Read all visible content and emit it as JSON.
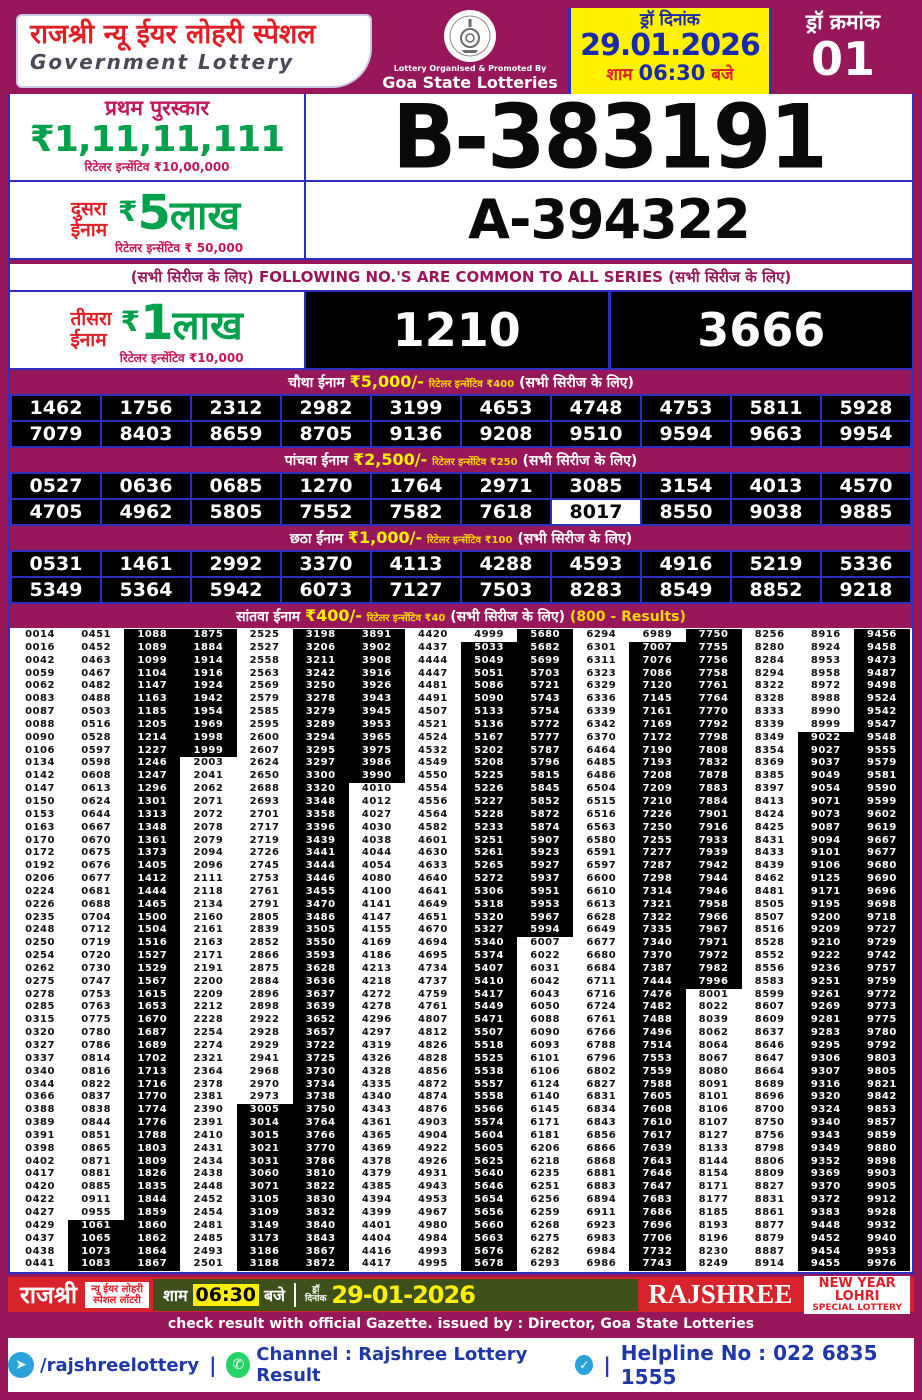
{
  "colors": {
    "magenta": "#97175A",
    "red": "#E21E26",
    "green": "#00A14B",
    "yellow": "#FFF100",
    "blue_text": "#1B2AA8",
    "blue_border": "#2E2EC0",
    "footer_red": "#D8232A",
    "footer_green": "#3E511C",
    "link_blue": "#2037A8",
    "black": "#000000"
  },
  "header": {
    "title": "राजश्री न्यू ईयर लोहरी स्पेशल",
    "subtitle": "Government Lottery",
    "org_line1": "Lottery Organised & Promoted By",
    "org_line2": "Goa State Lotteries",
    "draw_date_label": "ड्रॉ दिनांक",
    "draw_date": "29.01.2026",
    "time_prefix": "शाम",
    "time": "06:30",
    "time_suffix": "बजे",
    "draw_no_label": "ड्रॉ क्रमांक",
    "draw_no": "01"
  },
  "first_prize": {
    "label": "प्रथम पुरस्कार",
    "amount": "₹1,11,11,111",
    "incentive": "रिटेलर इन्सेंटिव ₹10,00,000",
    "number": "B-383191"
  },
  "second_prize": {
    "label_line1": "दुसरा",
    "label_line2": "ईनाम",
    "currency": "₹",
    "value": "5",
    "unit": "लाख",
    "incentive": "रिटेलर इन्सेंटिव ₹ 50,000",
    "number": "A-394322"
  },
  "common_note": {
    "left": "(सभी सिरीज के लिए)",
    "center": "FOLLOWING NO.'S ARE COMMON TO ALL SERIES",
    "right": "(सभी सिरीज के लिए)"
  },
  "third_prize": {
    "label_line1": "तीसरा",
    "label_line2": "ईनाम",
    "currency": "₹",
    "value": "1",
    "unit": "लाख",
    "incentive": "रिटेलर इन्सेंटिव ₹10,000",
    "numbers": [
      "1210",
      "3666"
    ]
  },
  "fourth_prize": {
    "title": "चौथा ईनाम",
    "amount": "₹5,000/-",
    "incentive": "रिटेलर इन्सेंटिव ₹400",
    "note": "(सभी सिरीज के लिए)",
    "numbers": [
      "1462",
      "1756",
      "2312",
      "2982",
      "3199",
      "4653",
      "4748",
      "4753",
      "5811",
      "5928",
      "7079",
      "8403",
      "8659",
      "8705",
      "9136",
      "9208",
      "9510",
      "9594",
      "9663",
      "9954"
    ]
  },
  "fifth_prize": {
    "title": "पांचवा ईनाम",
    "amount": "₹2,500/-",
    "incentive": "रिटेलर इन्सेंटिव ₹250",
    "note": "(सभी सिरीज के लिए)",
    "highlight": "8017",
    "numbers": [
      "0527",
      "0636",
      "0685",
      "1270",
      "1764",
      "2971",
      "3085",
      "3154",
      "4013",
      "4570",
      "4705",
      "4962",
      "5805",
      "7552",
      "7582",
      "7618",
      "8017",
      "8550",
      "9038",
      "9885"
    ]
  },
  "sixth_prize": {
    "title": "छठा ईनाम",
    "amount": "₹1,000/-",
    "incentive": "रिटेलर इन्सेंटिव ₹100",
    "note": "(सभी सिरीज के लिए)",
    "numbers": [
      "0531",
      "1461",
      "2992",
      "3370",
      "4113",
      "4288",
      "4593",
      "4916",
      "5219",
      "5336",
      "5349",
      "5364",
      "5942",
      "6073",
      "7127",
      "7503",
      "8283",
      "8549",
      "8852",
      "9218"
    ]
  },
  "seventh_prize": {
    "title": "सांतवा ईनाम",
    "amount": "₹400/-",
    "incentive": "रिटेलर इन्सेंटिव ₹40",
    "note": "(सभी सिरीज के लिए)",
    "results_note": "(800 - Results)",
    "columns": [
      [
        "0014",
        "0016",
        "0042",
        "0059",
        "0062",
        "0083",
        "0087",
        "0088",
        "0090",
        "0106",
        "0134",
        "0142",
        "0147",
        "0150",
        "0153",
        "0163",
        "0170",
        "0172",
        "0192",
        "0206",
        "0224",
        "0226",
        "0235",
        "0248",
        "0250",
        "0254",
        "0262",
        "0275",
        "0278",
        "0285",
        "0315",
        "0320",
        "0327",
        "0337",
        "0340",
        "0344",
        "0366",
        "0388",
        "0389",
        "0391",
        "0398",
        "0402",
        "0417",
        "0420",
        "0422",
        "0427",
        "0429",
        "0437",
        "0438",
        "0441"
      ],
      [
        "0451",
        "0452",
        "0463",
        "0467",
        "0482",
        "0488",
        "0503",
        "0516",
        "0528",
        "0597",
        "0598",
        "0608",
        "0613",
        "0624",
        "0644",
        "0667",
        "0670",
        "0675",
        "0676",
        "0677",
        "0681",
        "0688",
        "0704",
        "0712",
        "0719",
        "0720",
        "0730",
        "0747",
        "0753",
        "0763",
        "0775",
        "0780",
        "0786",
        "0814",
        "0816",
        "0822",
        "0837",
        "0838",
        "0844",
        "0851",
        "0865",
        "0871",
        "0881",
        "0885",
        "0911",
        "0955",
        "1061",
        "1065",
        "1073",
        "1083"
      ],
      [
        "1088",
        "1089",
        "1099",
        "1104",
        "1147",
        "1163",
        "1185",
        "1205",
        "1214",
        "1227",
        "1246",
        "1247",
        "1296",
        "1301",
        "1313",
        "1348",
        "1361",
        "1373",
        "1405",
        "1412",
        "1444",
        "1465",
        "1500",
        "1504",
        "1516",
        "1527",
        "1529",
        "1567",
        "1615",
        "1653",
        "1670",
        "1687",
        "1689",
        "1702",
        "1713",
        "1716",
        "1770",
        "1774",
        "1776",
        "1788",
        "1803",
        "1809",
        "1826",
        "1835",
        "1844",
        "1859",
        "1860",
        "1862",
        "1864",
        "1867"
      ],
      [
        "1875",
        "1884",
        "1914",
        "1916",
        "1924",
        "1942",
        "1954",
        "1969",
        "1998",
        "1999",
        "2003",
        "2041",
        "2062",
        "2071",
        "2072",
        "2078",
        "2079",
        "2094",
        "2096",
        "2111",
        "2118",
        "2134",
        "2160",
        "2161",
        "2163",
        "2171",
        "2191",
        "2200",
        "2209",
        "2212",
        "2228",
        "2254",
        "2274",
        "2321",
        "2364",
        "2378",
        "2381",
        "2390",
        "2391",
        "2410",
        "2431",
        "2434",
        "2438",
        "2448",
        "2452",
        "2454",
        "2481",
        "2485",
        "2493",
        "2501"
      ],
      [
        "2525",
        "2527",
        "2558",
        "2563",
        "2569",
        "2579",
        "2585",
        "2595",
        "2600",
        "2607",
        "2624",
        "2650",
        "2688",
        "2693",
        "2701",
        "2717",
        "2719",
        "2726",
        "2745",
        "2753",
        "2761",
        "2791",
        "2805",
        "2839",
        "2852",
        "2866",
        "2875",
        "2884",
        "2896",
        "2898",
        "2922",
        "2928",
        "2929",
        "2941",
        "2968",
        "2970",
        "2973",
        "3005",
        "3014",
        "3015",
        "3021",
        "3031",
        "3060",
        "3071",
        "3105",
        "3109",
        "3149",
        "3173",
        "3186",
        "3188"
      ],
      [
        "3198",
        "3206",
        "3211",
        "3242",
        "3250",
        "3278",
        "3279",
        "3289",
        "3294",
        "3295",
        "3297",
        "3300",
        "3320",
        "3348",
        "3358",
        "3396",
        "3439",
        "3441",
        "3444",
        "3446",
        "3455",
        "3470",
        "3486",
        "3505",
        "3550",
        "3593",
        "3628",
        "3636",
        "3637",
        "3639",
        "3652",
        "3657",
        "3722",
        "3725",
        "3730",
        "3734",
        "3738",
        "3750",
        "3764",
        "3766",
        "3770",
        "3786",
        "3810",
        "3822",
        "3830",
        "3832",
        "3840",
        "3843",
        "3867",
        "3872"
      ],
      [
        "3891",
        "3902",
        "3908",
        "3916",
        "3926",
        "3943",
        "3945",
        "3953",
        "3965",
        "3975",
        "3986",
        "3990",
        "4010",
        "4012",
        "4027",
        "4030",
        "4038",
        "4044",
        "4054",
        "4080",
        "4100",
        "4141",
        "4147",
        "4155",
        "4169",
        "4186",
        "4213",
        "4218",
        "4272",
        "4278",
        "4296",
        "4297",
        "4319",
        "4326",
        "4328",
        "4335",
        "4340",
        "4343",
        "4361",
        "4365",
        "4369",
        "4378",
        "4379",
        "4385",
        "4394",
        "4399",
        "4401",
        "4404",
        "4416",
        "4417"
      ],
      [
        "4420",
        "4437",
        "4444",
        "4447",
        "4481",
        "4491",
        "4507",
        "4521",
        "4524",
        "4532",
        "4549",
        "4550",
        "4554",
        "4556",
        "4564",
        "4582",
        "4601",
        "4630",
        "4633",
        "4640",
        "4641",
        "4649",
        "4651",
        "4670",
        "4694",
        "4695",
        "4734",
        "4737",
        "4759",
        "4761",
        "4807",
        "4812",
        "4826",
        "4828",
        "4856",
        "4872",
        "4874",
        "4876",
        "4903",
        "4904",
        "4922",
        "4926",
        "4931",
        "4943",
        "4953",
        "4967",
        "4980",
        "4984",
        "4993",
        "4995"
      ],
      [
        "4999",
        "5033",
        "5049",
        "5051",
        "5086",
        "5090",
        "5133",
        "5136",
        "5167",
        "5202",
        "5208",
        "5225",
        "5226",
        "5227",
        "5228",
        "5233",
        "5251",
        "5261",
        "5265",
        "5272",
        "5306",
        "5318",
        "5320",
        "5327",
        "5340",
        "5374",
        "5407",
        "5410",
        "5417",
        "5449",
        "5471",
        "5507",
        "5518",
        "5525",
        "5538",
        "5557",
        "5558",
        "5566",
        "5574",
        "5604",
        "5605",
        "5625",
        "5640",
        "5646",
        "5654",
        "5656",
        "5660",
        "5663",
        "5676",
        "5678"
      ],
      [
        "5680",
        "5682",
        "5699",
        "5703",
        "5721",
        "5743",
        "5754",
        "5772",
        "5777",
        "5787",
        "5796",
        "5815",
        "5845",
        "5852",
        "5872",
        "5874",
        "5907",
        "5923",
        "5927",
        "5937",
        "5951",
        "5953",
        "5967",
        "5994",
        "6007",
        "6022",
        "6031",
        "6042",
        "6043",
        "6050",
        "6088",
        "6090",
        "6093",
        "6101",
        "6106",
        "6124",
        "6140",
        "6145",
        "6171",
        "6181",
        "6206",
        "6218",
        "6235",
        "6251",
        "6256",
        "6259",
        "6268",
        "6275",
        "6282",
        "6293"
      ],
      [
        "6294",
        "6301",
        "6311",
        "6323",
        "6329",
        "6336",
        "6339",
        "6342",
        "6370",
        "6464",
        "6485",
        "6486",
        "6504",
        "6515",
        "6516",
        "6563",
        "6580",
        "6591",
        "6597",
        "6600",
        "6610",
        "6613",
        "6628",
        "6649",
        "6677",
        "6680",
        "6684",
        "6711",
        "6716",
        "6724",
        "6761",
        "6766",
        "6788",
        "6796",
        "6802",
        "6827",
        "6831",
        "6834",
        "6843",
        "6856",
        "6866",
        "6868",
        "6881",
        "6883",
        "6894",
        "6911",
        "6923",
        "6983",
        "6984",
        "6986"
      ],
      [
        "6989",
        "7007",
        "7076",
        "7086",
        "7120",
        "7145",
        "7161",
        "7169",
        "7172",
        "7190",
        "7193",
        "7208",
        "7209",
        "7210",
        "7226",
        "7250",
        "7255",
        "7277",
        "7287",
        "7298",
        "7314",
        "7321",
        "7322",
        "7335",
        "7340",
        "7370",
        "7387",
        "7444",
        "7476",
        "7482",
        "7488",
        "7496",
        "7514",
        "7553",
        "7559",
        "7588",
        "7605",
        "7608",
        "7610",
        "7617",
        "7639",
        "7643",
        "7646",
        "7647",
        "7683",
        "7686",
        "7696",
        "7706",
        "7732",
        "7743"
      ],
      [
        "7750",
        "7755",
        "7756",
        "7758",
        "7761",
        "7764",
        "7770",
        "7792",
        "7798",
        "7808",
        "7832",
        "7878",
        "7883",
        "7884",
        "7901",
        "7916",
        "7933",
        "7939",
        "7942",
        "7944",
        "7946",
        "7958",
        "7966",
        "7967",
        "7971",
        "7972",
        "7982",
        "7996",
        "8001",
        "8022",
        "8039",
        "8062",
        "8064",
        "8067",
        "8080",
        "8091",
        "8101",
        "8106",
        "8107",
        "8127",
        "8133",
        "8144",
        "8154",
        "8171",
        "8177",
        "8185",
        "8193",
        "8196",
        "8230",
        "8249"
      ],
      [
        "8256",
        "8280",
        "8284",
        "8294",
        "8322",
        "8328",
        "8333",
        "8339",
        "8349",
        "8354",
        "8369",
        "8385",
        "8397",
        "8413",
        "8424",
        "8425",
        "8431",
        "8433",
        "8439",
        "8462",
        "8481",
        "8505",
        "8507",
        "8516",
        "8528",
        "8552",
        "8556",
        "8583",
        "8599",
        "8607",
        "8609",
        "8637",
        "8646",
        "8647",
        "8664",
        "8689",
        "8696",
        "8700",
        "8750",
        "8756",
        "8798",
        "8806",
        "8809",
        "8827",
        "8831",
        "8861",
        "8877",
        "8879",
        "8887",
        "8914"
      ],
      [
        "8916",
        "8924",
        "8953",
        "8958",
        "8972",
        "8988",
        "8990",
        "8999",
        "9022",
        "9027",
        "9037",
        "9049",
        "9054",
        "9071",
        "9073",
        "9087",
        "9094",
        "9101",
        "9106",
        "9125",
        "9171",
        "9195",
        "9200",
        "9209",
        "9210",
        "9222",
        "9236",
        "9251",
        "9261",
        "9269",
        "9281",
        "9283",
        "9295",
        "9306",
        "9307",
        "9316",
        "9320",
        "9324",
        "9340",
        "9343",
        "9349",
        "9352",
        "9369",
        "9370",
        "9372",
        "9383",
        "9448",
        "9452",
        "9454",
        "9455"
      ],
      [
        "9456",
        "9458",
        "9473",
        "9487",
        "9498",
        "9524",
        "9542",
        "9547",
        "9548",
        "9555",
        "9579",
        "9581",
        "9590",
        "9599",
        "9602",
        "9619",
        "9667",
        "9677",
        "9680",
        "9690",
        "9696",
        "9698",
        "9718",
        "9727",
        "9729",
        "9742",
        "9757",
        "9759",
        "9772",
        "9773",
        "9775",
        "9780",
        "9792",
        "9803",
        "9805",
        "9821",
        "9842",
        "9853",
        "9857",
        "9859",
        "9880",
        "9898",
        "9903",
        "9905",
        "9912",
        "9928",
        "9932",
        "9940",
        "9953",
        "9976"
      ]
    ]
  },
  "footer": {
    "brand": "राजश्री",
    "lottery_line1": "न्यू ईयर लोहरी",
    "lottery_line2": "स्पेशल लॉटरी",
    "time_prefix": "शाम",
    "time": "06:30",
    "time_suffix": "बजे",
    "draw_label_line1": "ड्रॉ",
    "draw_label_line2": "दिनांक",
    "date": "29-01-2026",
    "brand_en": "RAJSHREE",
    "right_line1": "NEW YEAR",
    "right_line2": "LOHRI",
    "right_line3": "SPECIAL LOTTERY",
    "gazette": "check result with official Gazette. issued by : Director, Goa State Lotteries",
    "telegram": "/rajshreelottery",
    "channel": "Channel : Rajshree Lottery Result",
    "helpline": "Helpline No : 022 6835 1555"
  }
}
